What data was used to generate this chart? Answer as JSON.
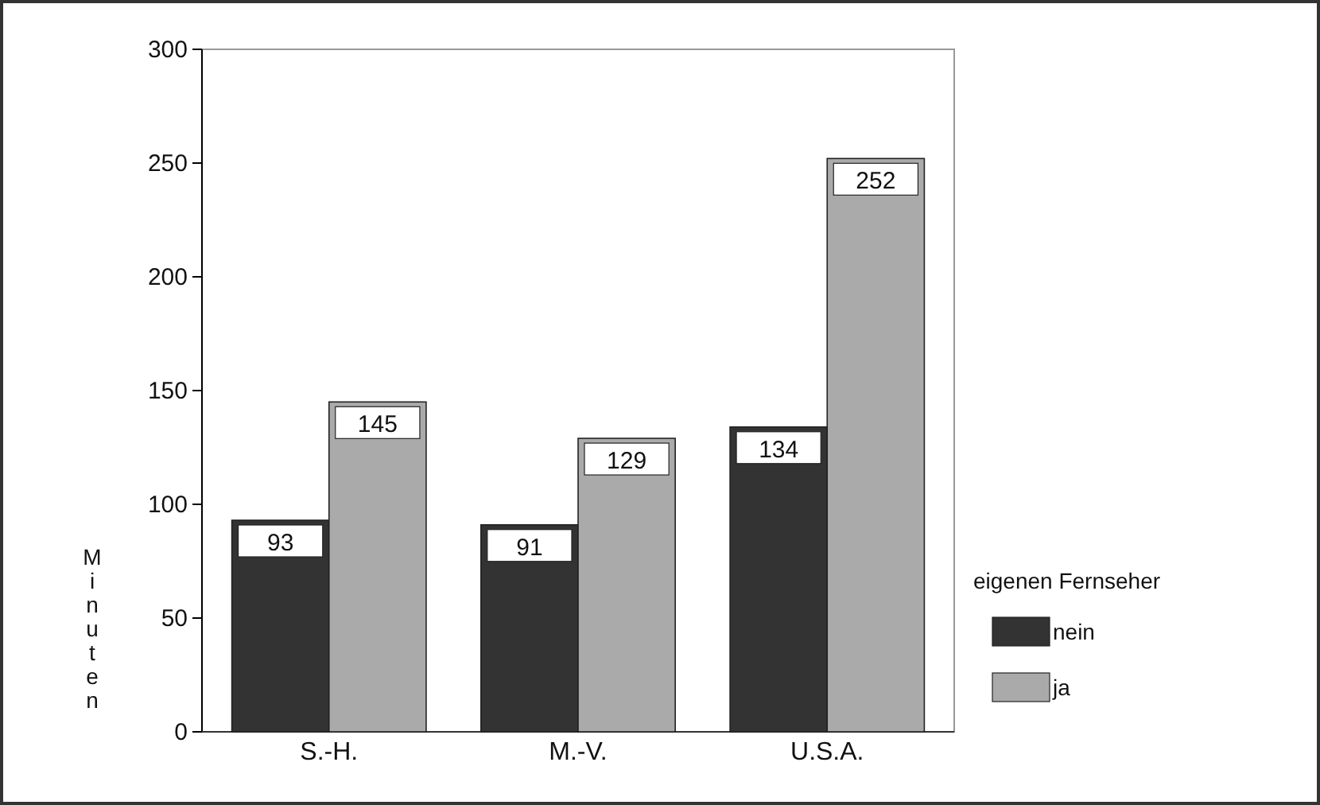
{
  "chart_data": {
    "type": "bar",
    "ylabel": "Minuten",
    "legend_title": "eigenen Fernseher",
    "categories": [
      "S.-H.",
      "M.-V.",
      "U.S.A."
    ],
    "series": [
      {
        "name": "nein",
        "color": "#333333",
        "values": [
          93,
          91,
          134
        ]
      },
      {
        "name": "ja",
        "color": "#aaaaaa",
        "values": [
          145,
          129,
          252
        ]
      }
    ],
    "ylim": [
      0,
      300
    ],
    "yticks": [
      0,
      50,
      100,
      150,
      200,
      250,
      300
    ],
    "data_labels": true,
    "grid": false,
    "legend": "right"
  }
}
